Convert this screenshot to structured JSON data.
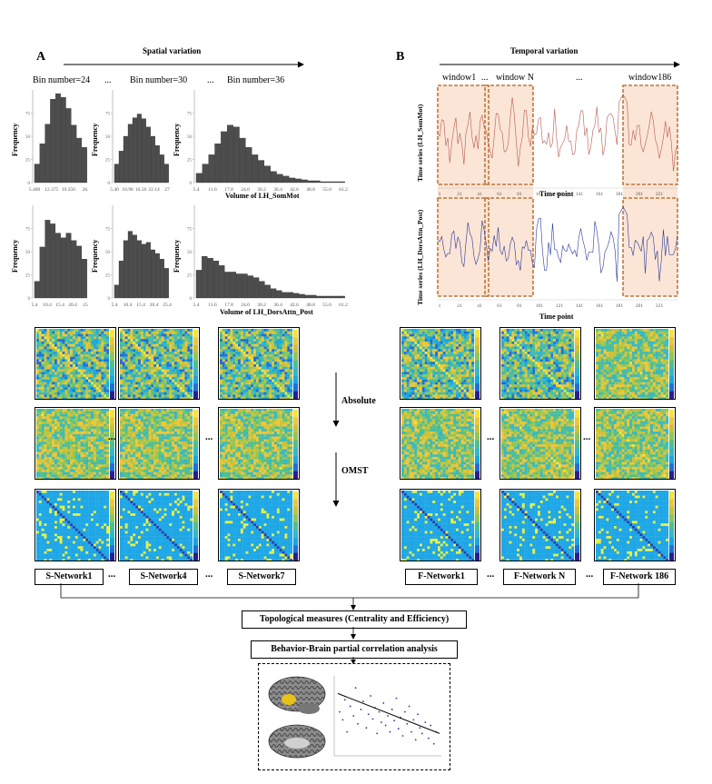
{
  "panelA": {
    "letter": "A",
    "title": "Spatial variation",
    "bin_labels": [
      "Bin number=24",
      "Bin number=30",
      "Bin number=36"
    ],
    "ellipsis": "...",
    "ylabel": "Frequency",
    "xlabel_row1": "Volume of LH_SomMot",
    "xlabel_row2": "Volume of LH_DorsAttn_Post",
    "histograms": [
      {
        "row": 1,
        "bins": 24,
        "values": [
          20,
          42,
          63,
          90,
          96,
          92,
          80,
          62,
          48,
          38
        ],
        "ticks": [
          "5.400",
          "12.375",
          "19.350",
          "26."
        ]
      },
      {
        "row": 1,
        "bins": 30,
        "values": [
          20,
          34,
          50,
          63,
          70,
          74,
          69,
          60,
          50,
          40,
          30,
          20
        ],
        "ticks": [
          "5.40",
          "10.98",
          "16.56",
          "22.14",
          "27"
        ]
      },
      {
        "row": 1,
        "bins": 36,
        "values": [
          10,
          20,
          30,
          42,
          55,
          62,
          60,
          48,
          38,
          30,
          24,
          18,
          12,
          9,
          7,
          5,
          4,
          3,
          2,
          2,
          1,
          1,
          1,
          1
        ],
        "ticks": [
          "5.4",
          "11.6",
          "17.8",
          "24.0",
          "30.2",
          "36.4",
          "42.6",
          "48.8",
          "55.0",
          "61.2"
        ]
      },
      {
        "row": 2,
        "bins": 24,
        "values": [
          18,
          55,
          84,
          80,
          70,
          65,
          70,
          62,
          56,
          42
        ],
        "ticks": [
          "5.4",
          "10.4",
          "15.4",
          "20.4",
          "25"
        ]
      },
      {
        "row": 2,
        "bins": 30,
        "values": [
          14,
          40,
          62,
          72,
          68,
          62,
          58,
          60,
          52,
          48,
          42,
          32
        ],
        "ticks": [
          "5.4",
          "10.4",
          "15.4",
          "20.4",
          "25.4"
        ]
      },
      {
        "row": 2,
        "bins": 36,
        "values": [
          30,
          45,
          43,
          40,
          35,
          28,
          28,
          26,
          26,
          24,
          22,
          18,
          14,
          10,
          8,
          6,
          6,
          5,
          4,
          3,
          3,
          2,
          2,
          2,
          2,
          2
        ],
        "ticks": [
          "5.4",
          "11.6",
          "17.8",
          "24.0",
          "30.2",
          "36.4",
          "42.6",
          "48.8",
          "55.0",
          "61.2"
        ]
      }
    ],
    "networks": [
      "S-Network1",
      "S-Network4",
      "S-Network7"
    ]
  },
  "panelB": {
    "letter": "B",
    "title": "Temporal variation",
    "windows": [
      "window1",
      "window N",
      "window186"
    ],
    "ylabel_top": "Time series (LH_SomMot)",
    "ylabel_bottom": "Time series (LH_DorsAttn_Post)",
    "xlabel": "Time point",
    "ticks": [
      "1",
      "21",
      "41",
      "61",
      "81",
      "101",
      "121",
      "141",
      "161",
      "181",
      "201",
      "221"
    ],
    "networks": [
      "F-Network1",
      "F-Network N",
      "F-Network 186"
    ]
  },
  "steps": {
    "absolute": "Absolute",
    "omst": "OMST"
  },
  "bottom": {
    "topological": "Topological measures (Centrality and Efficiency)",
    "analysis": "Behavior-Brain partial correlation analysis",
    "scatter_points": [
      [
        0.05,
        0.55
      ],
      [
        0.08,
        0.45
      ],
      [
        0.1,
        0.7
      ],
      [
        0.12,
        0.3
      ],
      [
        0.15,
        0.62
      ],
      [
        0.18,
        0.5
      ],
      [
        0.2,
        0.85
      ],
      [
        0.22,
        0.4
      ],
      [
        0.25,
        0.58
      ],
      [
        0.27,
        0.68
      ],
      [
        0.3,
        0.35
      ],
      [
        0.32,
        0.52
      ],
      [
        0.34,
        0.75
      ],
      [
        0.36,
        0.46
      ],
      [
        0.38,
        0.6
      ],
      [
        0.4,
        0.28
      ],
      [
        0.42,
        0.55
      ],
      [
        0.44,
        0.42
      ],
      [
        0.46,
        0.66
      ],
      [
        0.48,
        0.38
      ],
      [
        0.5,
        0.5
      ],
      [
        0.52,
        0.3
      ],
      [
        0.54,
        0.58
      ],
      [
        0.56,
        0.44
      ],
      [
        0.58,
        0.72
      ],
      [
        0.6,
        0.34
      ],
      [
        0.62,
        0.48
      ],
      [
        0.64,
        0.25
      ],
      [
        0.66,
        0.55
      ],
      [
        0.68,
        0.4
      ],
      [
        0.7,
        0.62
      ],
      [
        0.72,
        0.3
      ],
      [
        0.74,
        0.45
      ],
      [
        0.76,
        0.2
      ],
      [
        0.78,
        0.52
      ],
      [
        0.8,
        0.35
      ],
      [
        0.82,
        0.28
      ],
      [
        0.85,
        0.42
      ],
      [
        0.88,
        0.22
      ],
      [
        0.9,
        0.38
      ],
      [
        0.93,
        0.15
      ],
      [
        0.95,
        0.3
      ]
    ]
  },
  "colors": {
    "bar": "#4d4d4d",
    "window_fill": "#fbe5d6",
    "window_border": "#c0763a",
    "series_top": "#b85c4f",
    "series_bottom": "#2b3a9c",
    "arrow": "#000000"
  }
}
